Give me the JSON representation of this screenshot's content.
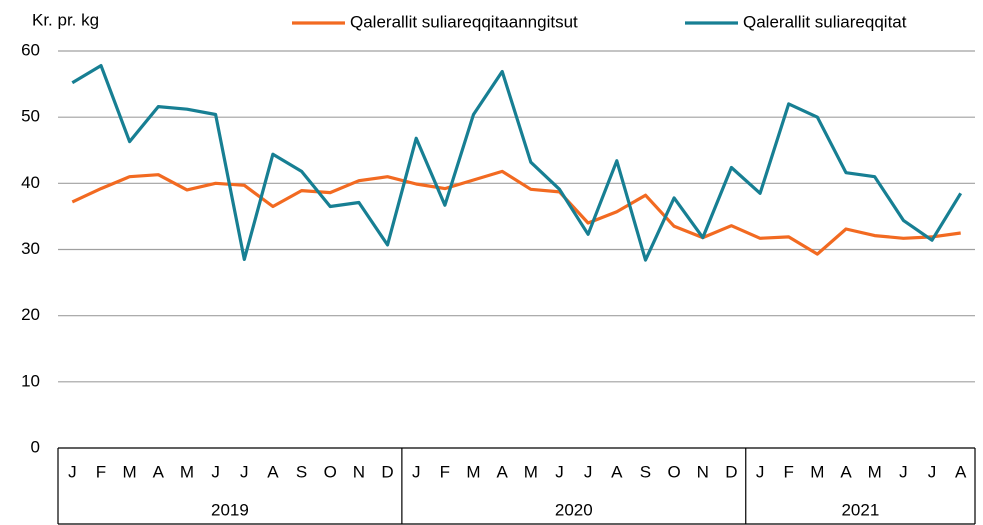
{
  "chart_data": {
    "type": "line",
    "y_label": "Kr. pr. kg",
    "categories": [
      "J",
      "F",
      "M",
      "A",
      "M",
      "J",
      "J",
      "A",
      "S",
      "O",
      "N",
      "D",
      "J",
      "F",
      "M",
      "A",
      "M",
      "J",
      "J",
      "A",
      "S",
      "O",
      "N",
      "D",
      "J",
      "F",
      "M",
      "A",
      "M",
      "J",
      "J",
      "A"
    ],
    "x_groups": [
      {
        "label": "2019",
        "size": 12
      },
      {
        "label": "2020",
        "size": 12
      },
      {
        "label": "2021",
        "size": 8
      }
    ],
    "series": [
      {
        "name": "Qalerallit suliareqqitaanngitsut",
        "color": "#f26a21",
        "values": [
          37.2,
          39.2,
          41,
          41.3,
          39,
          40,
          39.7,
          36.5,
          38.9,
          38.6,
          40.4,
          41,
          39.9,
          39.2,
          40.5,
          41.8,
          39.1,
          38.7,
          34,
          35.7,
          38.2,
          33.5,
          31.8,
          33.6,
          31.7,
          31.9,
          29.3,
          33.1,
          32.1,
          31.7,
          31.9,
          32.5
        ]
      },
      {
        "name": "Qalerallit suliareqqitat",
        "color": "#177f93",
        "values": [
          55.2,
          57.8,
          46.3,
          51.6,
          51.2,
          50.4,
          28.5,
          44.4,
          41.8,
          36.5,
          37.1,
          30.7,
          46.8,
          36.7,
          50.4,
          56.9,
          43.2,
          39.1,
          32.3,
          43.4,
          28.4,
          37.8,
          31.8,
          42.4,
          38.5,
          52,
          50,
          41.6,
          41,
          34.4,
          31.4,
          38.5
        ]
      }
    ],
    "ylim": [
      0,
      60
    ],
    "yticks": [
      0,
      10,
      20,
      30,
      40,
      50,
      60
    ],
    "grid": true,
    "legend": "top"
  }
}
